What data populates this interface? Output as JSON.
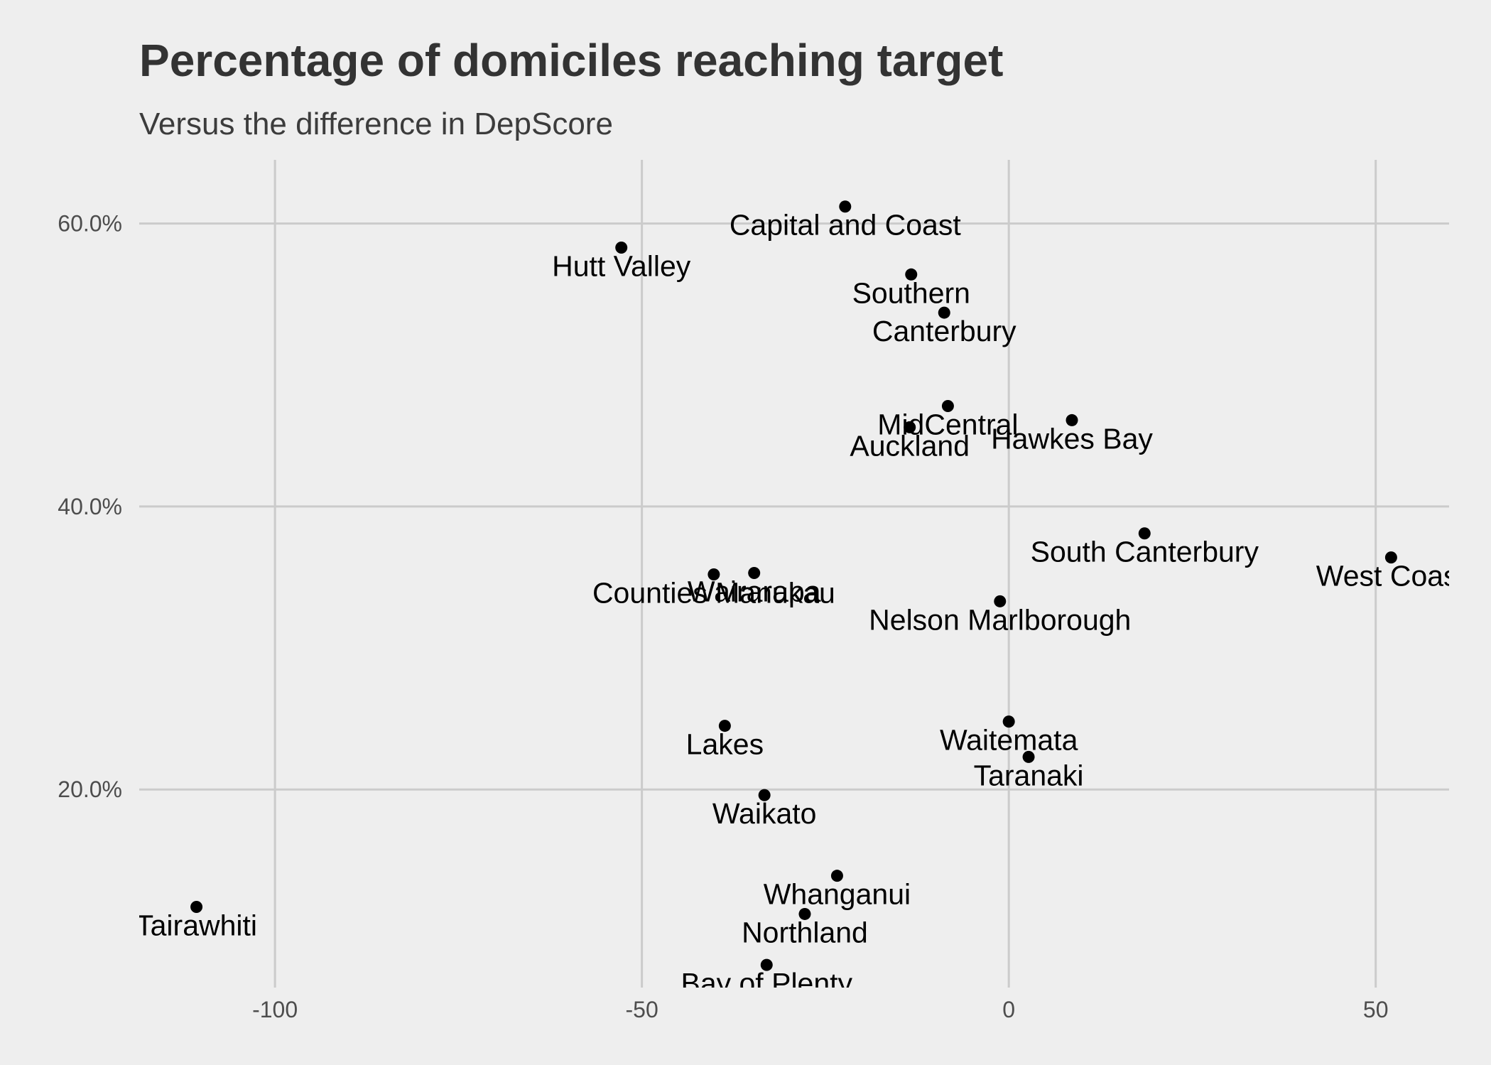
{
  "chart_data": {
    "type": "scatter",
    "title": "Percentage of domiciles reaching target",
    "subtitle": "Versus the difference in DepScore",
    "xlabel": "",
    "ylabel": "",
    "xlim": [
      -118.5,
      60
    ],
    "ylim": [
      0.06,
      0.645
    ],
    "x_ticks": [
      -100,
      -50,
      0,
      50
    ],
    "x_tick_labels": [
      "-100",
      "-50",
      "0",
      "50"
    ],
    "y_ticks": [
      0.2,
      0.4,
      0.6
    ],
    "y_tick_labels": [
      "20.0%",
      "40.0%",
      "60.0%"
    ],
    "grid": true,
    "legend": "none",
    "point_color": "#000000",
    "points": [
      {
        "label": "Capital and Coast",
        "x": -22.3,
        "y": 0.612
      },
      {
        "label": "Hutt Valley",
        "x": -52.8,
        "y": 0.583
      },
      {
        "label": "Southern",
        "x": -13.3,
        "y": 0.564
      },
      {
        "label": "Canterbury",
        "x": -8.8,
        "y": 0.537
      },
      {
        "label": "MidCentral",
        "x": -8.3,
        "y": 0.471
      },
      {
        "label": "Auckland",
        "x": -13.5,
        "y": 0.456
      },
      {
        "label": "Hawkes Bay",
        "x": 8.6,
        "y": 0.461
      },
      {
        "label": "South Canterbury",
        "x": 18.5,
        "y": 0.381
      },
      {
        "label": "West Coast",
        "x": 52.1,
        "y": 0.364
      },
      {
        "label": "Counties Manukau",
        "x": -40.2,
        "y": 0.352
      },
      {
        "label": "Wairarapa",
        "x": -34.7,
        "y": 0.353
      },
      {
        "label": "Nelson Marlborough",
        "x": -1.2,
        "y": 0.333
      },
      {
        "label": "Lakes",
        "x": -38.7,
        "y": 0.245
      },
      {
        "label": "Waitemata",
        "x": 0.0,
        "y": 0.248
      },
      {
        "label": "Taranaki",
        "x": 2.7,
        "y": 0.223
      },
      {
        "label": "Waikato",
        "x": -33.3,
        "y": 0.196
      },
      {
        "label": "Whanganui",
        "x": -23.4,
        "y": 0.139
      },
      {
        "label": "Tairawhiti",
        "x": -110.7,
        "y": 0.117
      },
      {
        "label": "Northland",
        "x": -27.8,
        "y": 0.112
      },
      {
        "label": "Bay of Plenty",
        "x": -33.0,
        "y": 0.076
      }
    ]
  }
}
